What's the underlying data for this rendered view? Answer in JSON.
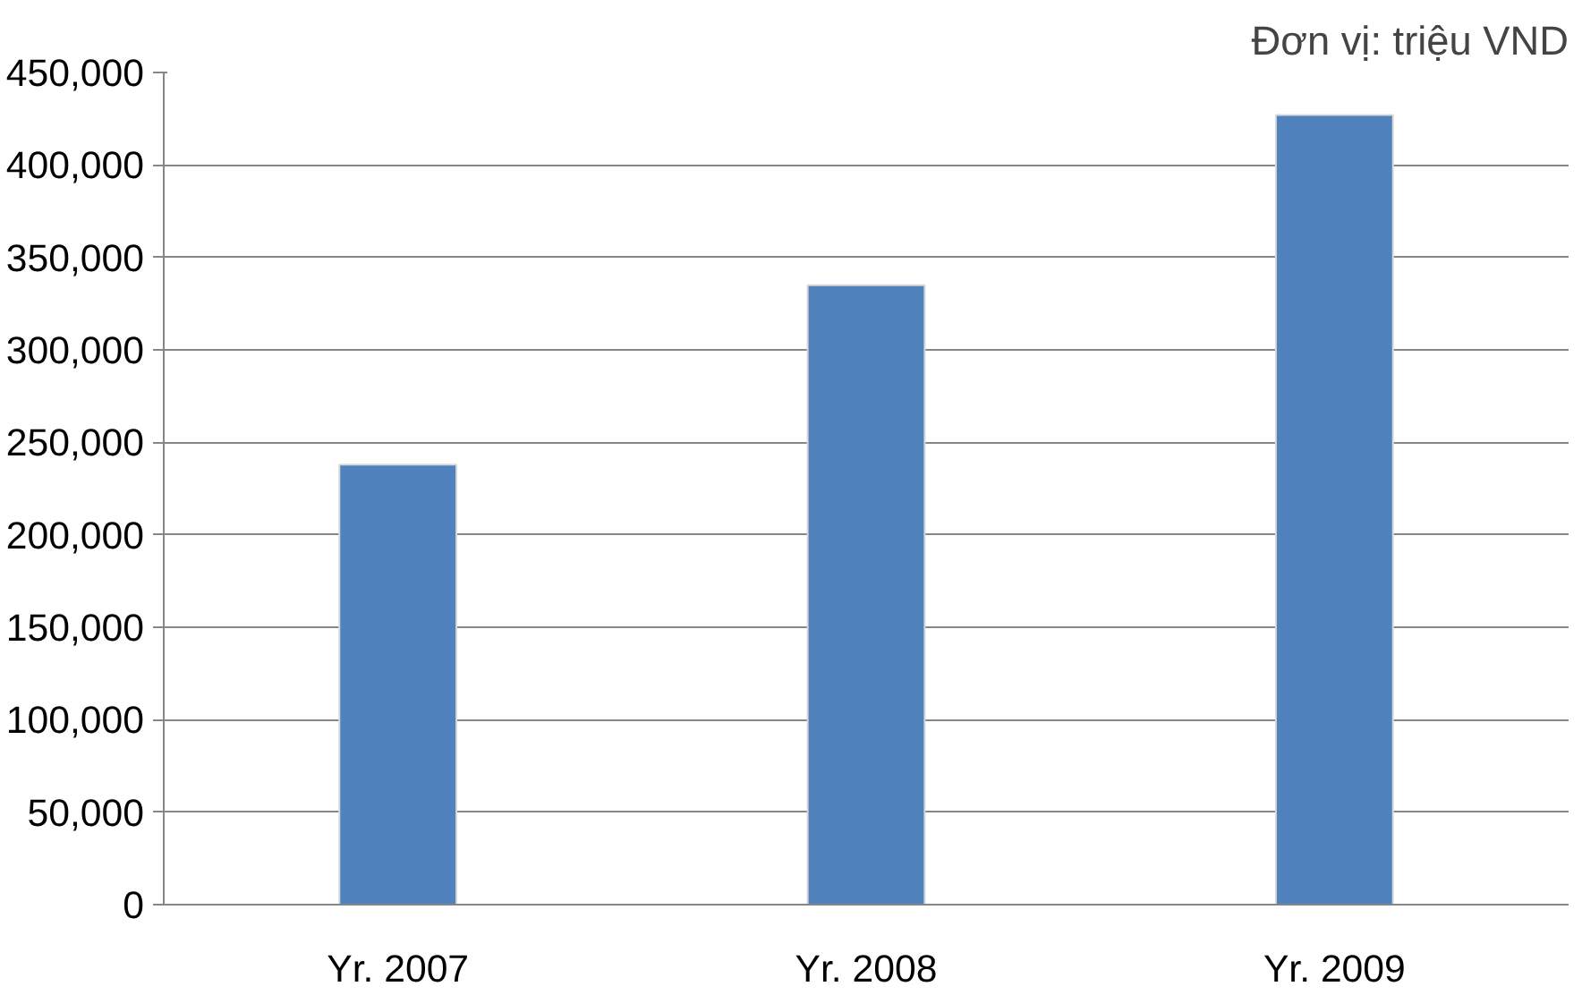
{
  "chart_data": {
    "type": "bar",
    "categories": [
      "Yr. 2007",
      "Yr. 2008",
      "Yr. 2009"
    ],
    "series": [
      {
        "color": "#4f81bd",
        "values": [
          238000,
          335000,
          427000
        ]
      }
    ],
    "ylim": [
      0,
      450000
    ],
    "yticks": [
      {
        "value": 0,
        "label": "0"
      },
      {
        "value": 50000,
        "label": "50,000"
      },
      {
        "value": 100000,
        "label": "100,000"
      },
      {
        "value": 150000,
        "label": "150,000"
      },
      {
        "value": 200000,
        "label": "200,000"
      },
      {
        "value": 250000,
        "label": "250,000"
      },
      {
        "value": 300000,
        "label": "300,000"
      },
      {
        "value": 350000,
        "label": "350,000"
      },
      {
        "value": 400000,
        "label": "400,000"
      },
      {
        "value": 450000,
        "label": "450,000"
      }
    ],
    "grid": "y",
    "annotations": [
      "Đơn vị: triệu VND"
    ]
  }
}
